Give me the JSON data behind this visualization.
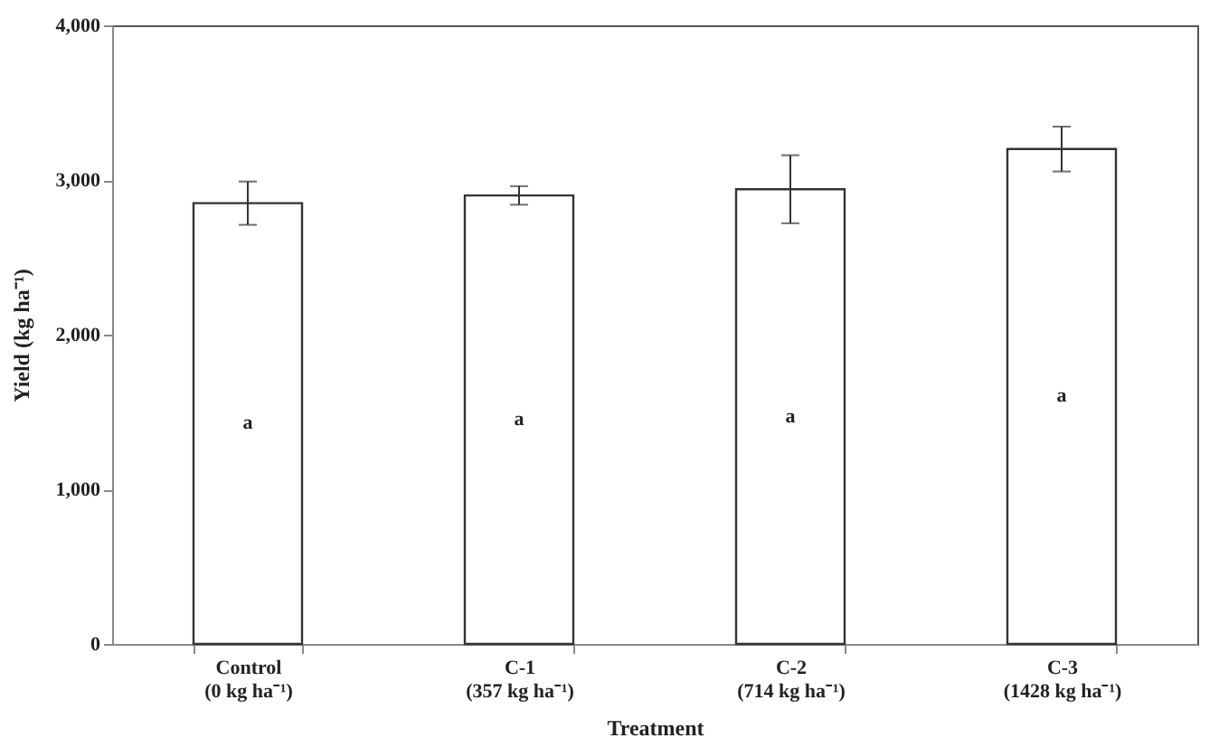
{
  "chart_data": {
    "type": "bar",
    "xlabel": "Treatment",
    "ylabel": "Yield (kg ha⁻¹)",
    "categories": [
      "Control\n(0 kg ha⁻¹)",
      "C-1\n(357 kg ha⁻¹)",
      "C-2\n(714 kg ha⁻¹)",
      "C-3\n(1428 kg ha⁻¹)"
    ],
    "values": [
      2850,
      2900,
      2940,
      3200
    ],
    "errors": [
      140,
      60,
      220,
      145
    ],
    "color": "#ffffff",
    "ylim": [
      0,
      4000
    ],
    "yticks": [
      {
        "value": 0,
        "label": "0"
      },
      {
        "value": 1000,
        "label": "1,000"
      },
      {
        "value": 2000,
        "label": "2,000"
      },
      {
        "value": 3000,
        "label": "3,000"
      },
      {
        "value": 4000,
        "label": "4,000"
      }
    ],
    "grid": false,
    "annotations": [
      "a",
      "a",
      "a",
      "a"
    ]
  }
}
